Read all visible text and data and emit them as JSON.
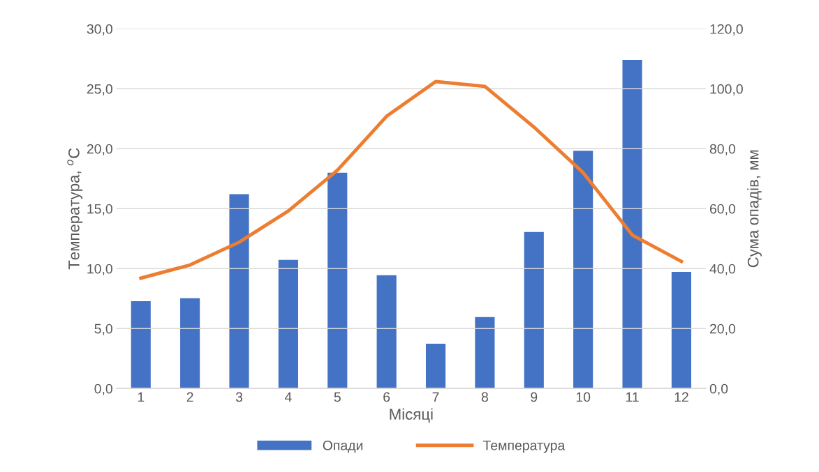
{
  "chart_data": {
    "type": "bar",
    "xlabel": "Місяці",
    "ylabel": "Температура, $^{o}$C",
    "y2label": "Сума опадів, мм",
    "categories": [
      "1",
      "2",
      "3",
      "4",
      "5",
      "6",
      "7",
      "8",
      "9",
      "10",
      "11",
      "12"
    ],
    "series": [
      {
        "name": "Опади",
        "axis": "y2",
        "color": "#4472c4",
        "values": [
          29.1,
          30.1,
          64.8,
          42.9,
          72.0,
          37.8,
          14.9,
          23.8,
          52.2,
          79.3,
          109.6,
          38.9
        ]
      },
      {
        "name": "Температура",
        "type": "line",
        "axis": "y",
        "color": "#ed7d31",
        "values": [
          9.2,
          10.3,
          12.2,
          14.8,
          18.2,
          22.7,
          25.6,
          25.2,
          21.8,
          18.0,
          12.8,
          10.6
        ]
      }
    ],
    "ylim": [
      0,
      30
    ],
    "yticks": [
      {
        "value": 0,
        "label": "0,0"
      },
      {
        "value": 5,
        "label": "5,0"
      },
      {
        "value": 10,
        "label": "10,0"
      },
      {
        "value": 15,
        "label": "15,0"
      },
      {
        "value": 20,
        "label": "20,0"
      },
      {
        "value": 25,
        "label": "25,0"
      },
      {
        "value": 30,
        "label": "30,0"
      }
    ],
    "y2lim": [
      0,
      120
    ],
    "y2ticks": [
      {
        "value": 0,
        "label": "0,0"
      },
      {
        "value": 20,
        "label": "20,0"
      },
      {
        "value": 40,
        "label": "40,0"
      },
      {
        "value": 60,
        "label": "60,0"
      },
      {
        "value": 80,
        "label": "80,0"
      },
      {
        "value": 100,
        "label": "100,0"
      },
      {
        "value": 120,
        "label": "120,0"
      }
    ],
    "grid": "y",
    "legend": "bottom",
    "marker": "none",
    "line_style": "solid"
  }
}
